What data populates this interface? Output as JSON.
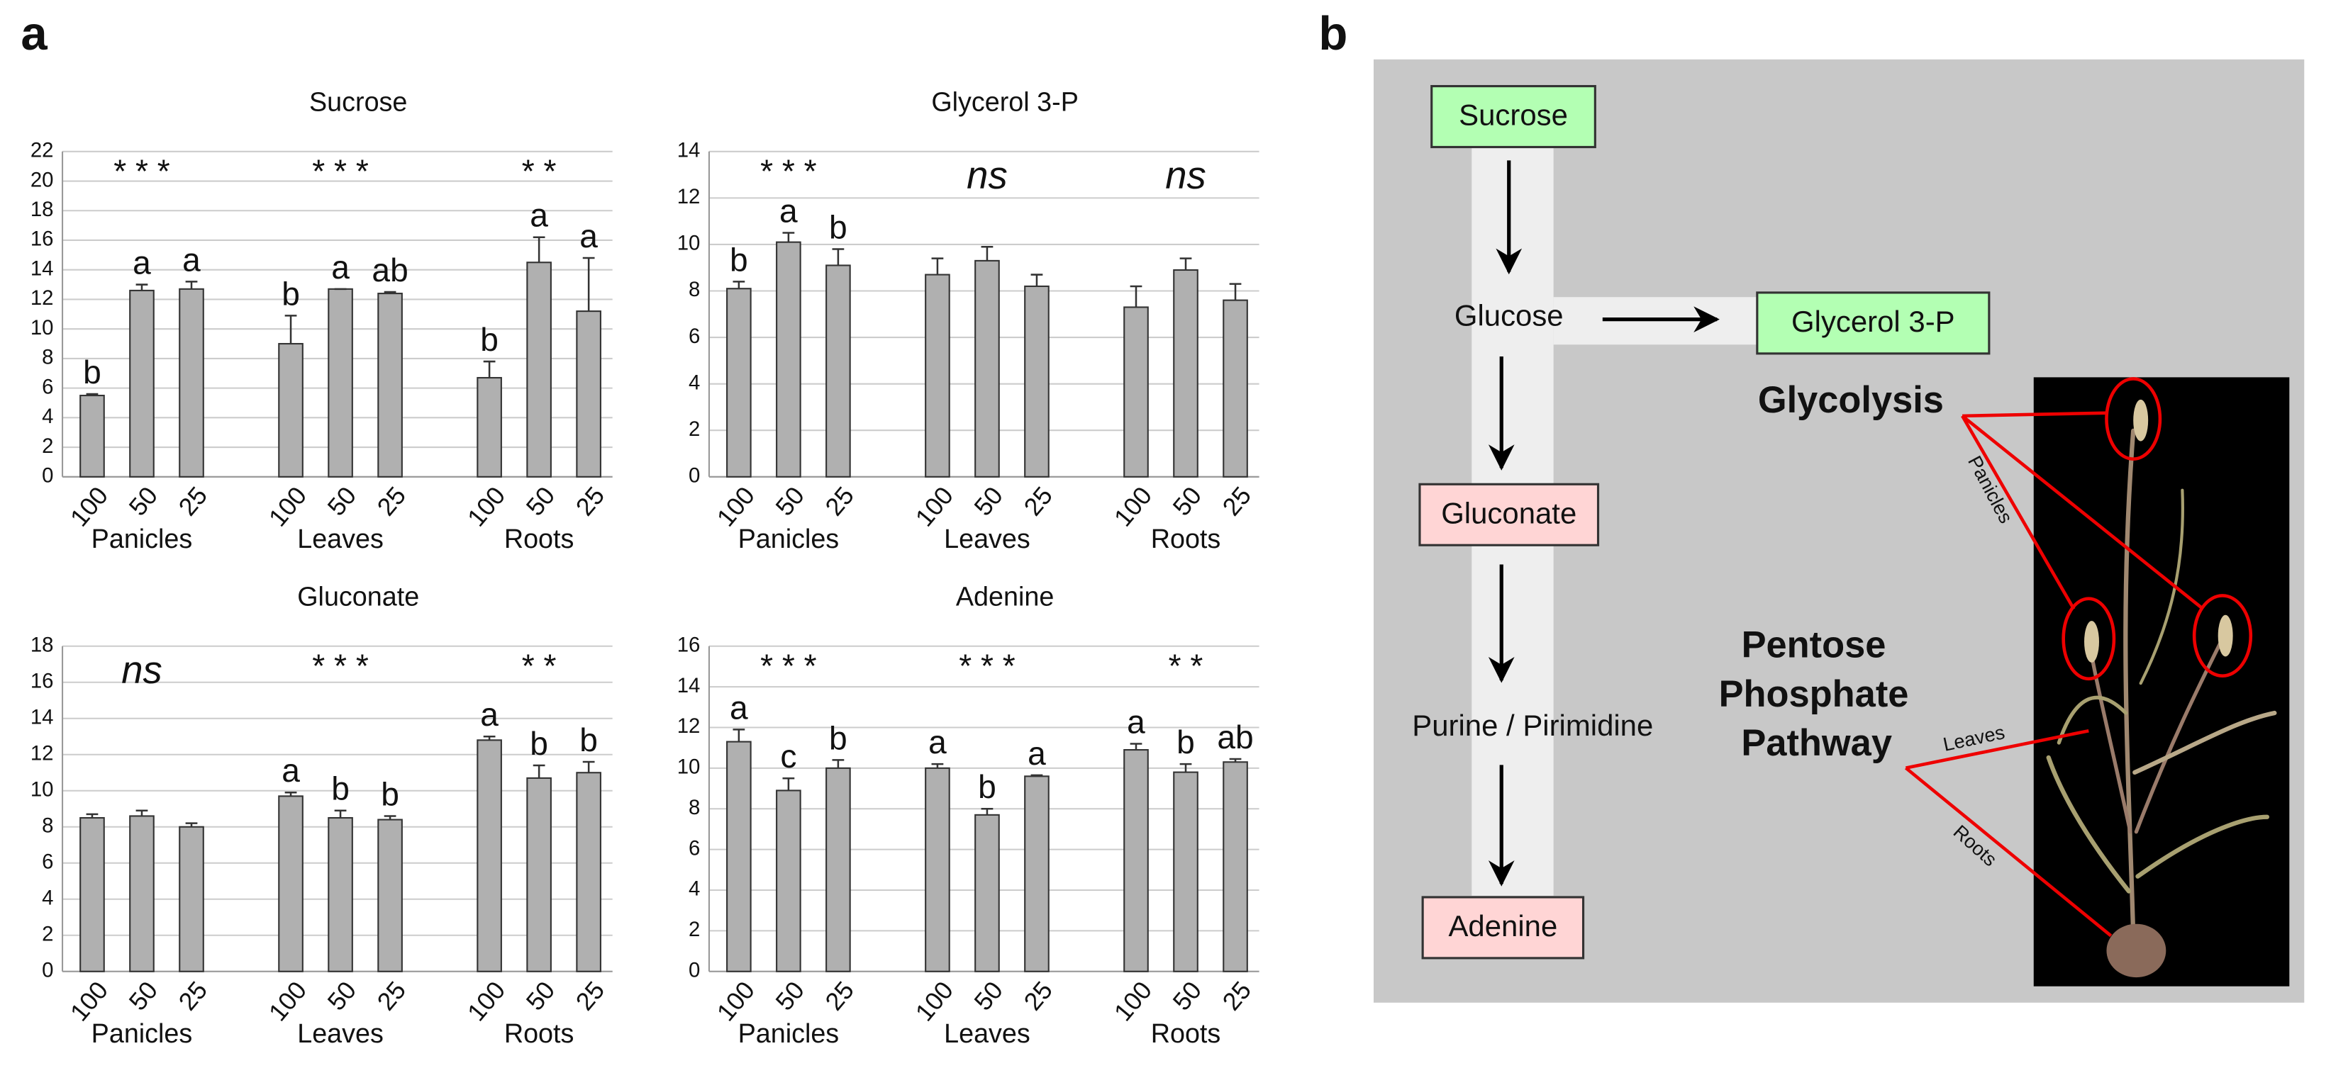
{
  "panel_labels": [
    "a",
    "b"
  ],
  "chart_data": [
    {
      "type": "bar",
      "title": "Sucrose",
      "groups": [
        "Panicles",
        "Leaves",
        "Roots"
      ],
      "categories": [
        "100",
        "50",
        "25",
        "100",
        "50",
        "25",
        "100",
        "50",
        "25"
      ],
      "series": [
        {
          "color": "#b0b0b0",
          "values": [
            5.5,
            12.6,
            12.7,
            9.0,
            12.7,
            12.4,
            6.7,
            14.5,
            11.2
          ],
          "errors": [
            0.1,
            0.4,
            0.5,
            1.9,
            0,
            0.1,
            1.1,
            1.7,
            3.6
          ]
        }
      ],
      "letters": [
        "b",
        "a",
        "a",
        "b",
        "a",
        "ab",
        "b",
        "a",
        "a"
      ],
      "significance": [
        "* * *",
        "* * *",
        "* *"
      ],
      "ylim": [
        0,
        22
      ],
      "yticks": [
        0,
        2,
        4,
        6,
        8,
        10,
        12,
        14,
        16,
        18,
        20,
        22
      ],
      "grid": true
    },
    {
      "type": "bar",
      "title": "Glycerol 3-P",
      "groups": [
        "Panicles",
        "Leaves",
        "Roots"
      ],
      "categories": [
        "100",
        "50",
        "25",
        "100",
        "50",
        "25",
        "100",
        "50",
        "25"
      ],
      "series": [
        {
          "color": "#b0b0b0",
          "values": [
            8.1,
            10.1,
            9.1,
            8.7,
            9.3,
            8.2,
            7.3,
            8.9,
            7.6
          ],
          "errors": [
            0.3,
            0.4,
            0.7,
            0.7,
            0.6,
            0.5,
            0.9,
            0.5,
            0.7
          ]
        }
      ],
      "letters": [
        "b",
        "a",
        "b",
        null,
        null,
        null,
        null,
        null,
        null
      ],
      "significance": [
        "* * *",
        "ns",
        "ns"
      ],
      "ylim": [
        0,
        14
      ],
      "yticks": [
        0,
        2,
        4,
        6,
        8,
        10,
        12,
        14
      ],
      "grid": true
    },
    {
      "type": "bar",
      "title": "Gluconate",
      "groups": [
        "Panicles",
        "Leaves",
        "Roots"
      ],
      "categories": [
        "100",
        "50",
        "25",
        "100",
        "50",
        "25",
        "100",
        "50",
        "25"
      ],
      "series": [
        {
          "color": "#b0b0b0",
          "values": [
            8.5,
            8.6,
            8.0,
            9.7,
            8.5,
            8.4,
            12.8,
            10.7,
            11.0
          ],
          "errors": [
            0.2,
            0.3,
            0.2,
            0.2,
            0.4,
            0.2,
            0.2,
            0.7,
            0.6
          ]
        }
      ],
      "letters": [
        null,
        null,
        null,
        "a",
        "b",
        "b",
        "a",
        "b",
        "b"
      ],
      "significance": [
        "ns",
        "* * *",
        "* *"
      ],
      "ylim": [
        0,
        18
      ],
      "yticks": [
        0,
        2,
        4,
        6,
        8,
        10,
        12,
        14,
        16,
        18
      ],
      "grid": true
    },
    {
      "type": "bar",
      "title": "Adenine",
      "groups": [
        "Panicles",
        "Leaves",
        "Roots"
      ],
      "categories": [
        "100",
        "50",
        "25",
        "100",
        "50",
        "25",
        "100",
        "50",
        "25"
      ],
      "series": [
        {
          "color": "#b0b0b0",
          "values": [
            11.3,
            8.9,
            10.0,
            10.0,
            7.7,
            9.6,
            10.9,
            9.8,
            10.3
          ],
          "errors": [
            0.6,
            0.6,
            0.4,
            0.2,
            0.3,
            0.05,
            0.3,
            0.4,
            0.15
          ]
        }
      ],
      "letters": [
        "a",
        "c",
        "b",
        "a",
        "b",
        "a",
        "a",
        "b",
        "ab"
      ],
      "significance": [
        "* * *",
        "* * *",
        "* *"
      ],
      "ylim": [
        0,
        16
      ],
      "yticks": [
        0,
        2,
        4,
        6,
        8,
        10,
        12,
        14,
        16
      ],
      "grid": true
    }
  ],
  "diagram": {
    "nodes": [
      {
        "label": "Sucrose"
      },
      {
        "label": "Glucose"
      },
      {
        "label": "Glycerol 3-P"
      },
      {
        "label": "Gluconate"
      },
      {
        "label": "Purine / Pirimidine"
      },
      {
        "label": "Adenine"
      }
    ],
    "pathways": [
      "Glycolysis",
      "Pentose",
      "Phosphate",
      "Pathway"
    ],
    "organs": [
      "Panicles",
      "Leaves",
      "Roots"
    ]
  }
}
